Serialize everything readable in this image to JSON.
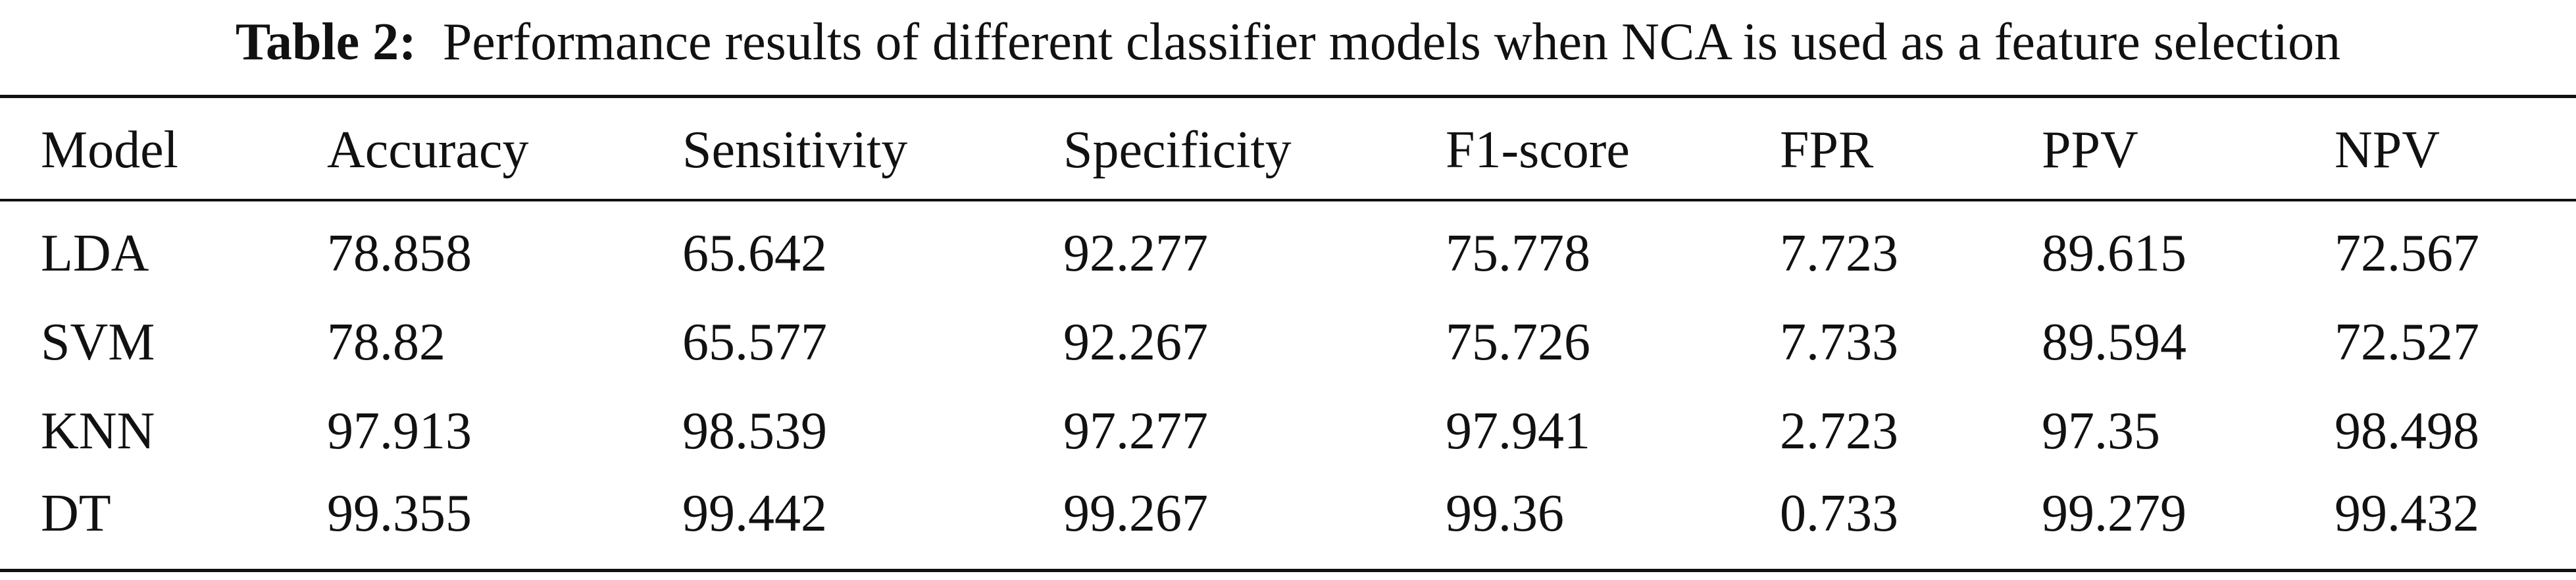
{
  "caption": {
    "label": "Table 2:",
    "text": "Performance results of different classifier models when NCA is used as a feature selection"
  },
  "table": {
    "headers": [
      "Model",
      "Accuracy",
      "Sensitivity",
      "Specificity",
      "F1-score",
      "FPR",
      "PPV",
      "NPV"
    ],
    "rows": [
      [
        "LDA",
        "78.858",
        "65.642",
        "92.277",
        "75.778",
        "7.723",
        "89.615",
        "72.567"
      ],
      [
        "SVM",
        "78.82",
        "65.577",
        "92.267",
        "75.726",
        "7.733",
        "89.594",
        "72.527"
      ],
      [
        "KNN",
        "97.913",
        "98.539",
        "97.277",
        "97.941",
        "2.723",
        "97.35",
        "98.498"
      ],
      [
        "DT",
        "99.355",
        "99.442",
        "99.267",
        "99.36",
        "0.733",
        "99.279",
        "99.432"
      ]
    ]
  }
}
